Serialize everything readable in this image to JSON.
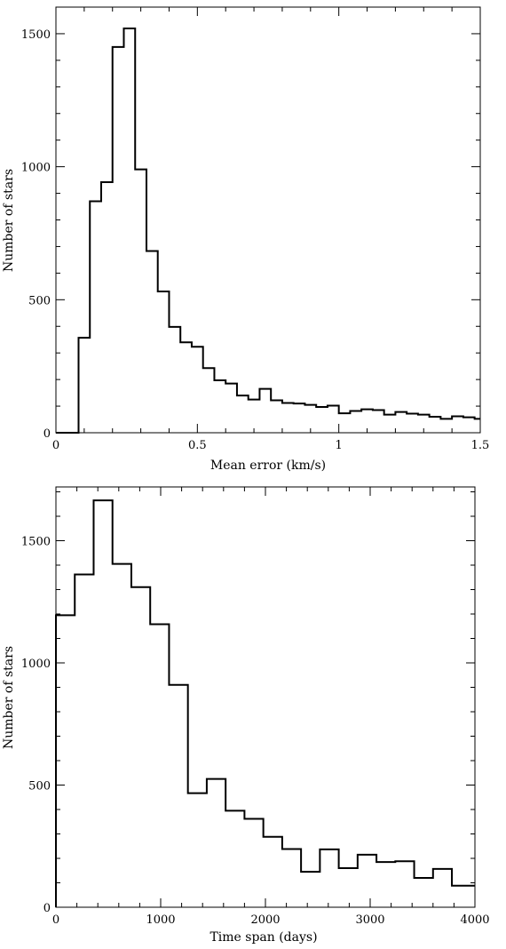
{
  "chart_data": [
    {
      "type": "bar",
      "histogram": true,
      "xlabel": "Mean error (km/s)",
      "ylabel": "Number of stars",
      "xlim": [
        0,
        1.5
      ],
      "ylim": [
        0,
        1600
      ],
      "xticks": [
        0,
        0.5,
        1,
        1.5
      ],
      "xtick_labels": [
        "0",
        "0.5",
        "1",
        "1.5"
      ],
      "yticks": [
        0,
        500,
        1000,
        1500
      ],
      "ytick_labels": [
        "0",
        "500",
        "1000",
        "1500"
      ],
      "x_minor_step": 0.1,
      "y_minor_step": 100,
      "grid": false,
      "bin_edges": [
        0,
        0.08,
        0.12,
        0.16,
        0.2,
        0.24,
        0.28,
        0.32,
        0.36,
        0.4,
        0.44,
        0.48,
        0.52,
        0.56,
        0.6,
        0.64,
        0.68,
        0.72,
        0.76,
        0.8,
        0.84,
        0.88,
        0.92,
        0.96,
        1.0,
        1.04,
        1.08,
        1.12,
        1.16,
        1.2,
        1.24,
        1.28,
        1.32,
        1.36,
        1.4,
        1.44,
        1.48,
        1.5
      ],
      "values": [
        0,
        357,
        870,
        942,
        1450,
        1520,
        990,
        683,
        531,
        398,
        340,
        323,
        243,
        197,
        185,
        140,
        125,
        165,
        122,
        112,
        110,
        105,
        97,
        102,
        73,
        82,
        88,
        85,
        68,
        78,
        72,
        68,
        60,
        52,
        62,
        58,
        52
      ]
    },
    {
      "type": "bar",
      "histogram": true,
      "xlabel": "Time span (days)",
      "ylabel": "Number of stars",
      "xlim": [
        0,
        4000
      ],
      "ylim": [
        0,
        1720
      ],
      "xticks": [
        0,
        1000,
        2000,
        3000,
        4000
      ],
      "xtick_labels": [
        "0",
        "1000",
        "2000",
        "3000",
        "4000"
      ],
      "yticks": [
        0,
        500,
        1000,
        1500
      ],
      "ytick_labels": [
        "0",
        "500",
        "1000",
        "1500"
      ],
      "x_minor_step": 200,
      "y_minor_step": 100,
      "grid": false,
      "bin_edges": [
        0,
        180,
        360,
        540,
        720,
        900,
        1080,
        1260,
        1440,
        1620,
        1800,
        1980,
        2160,
        2340,
        2520,
        2700,
        2880,
        3060,
        3240,
        3420,
        3600,
        3780,
        4000
      ],
      "values": [
        1195,
        1362,
        1665,
        1405,
        1310,
        1158,
        910,
        467,
        525,
        395,
        362,
        288,
        238,
        145,
        237,
        160,
        215,
        185,
        188,
        120,
        157,
        88
      ]
    }
  ]
}
